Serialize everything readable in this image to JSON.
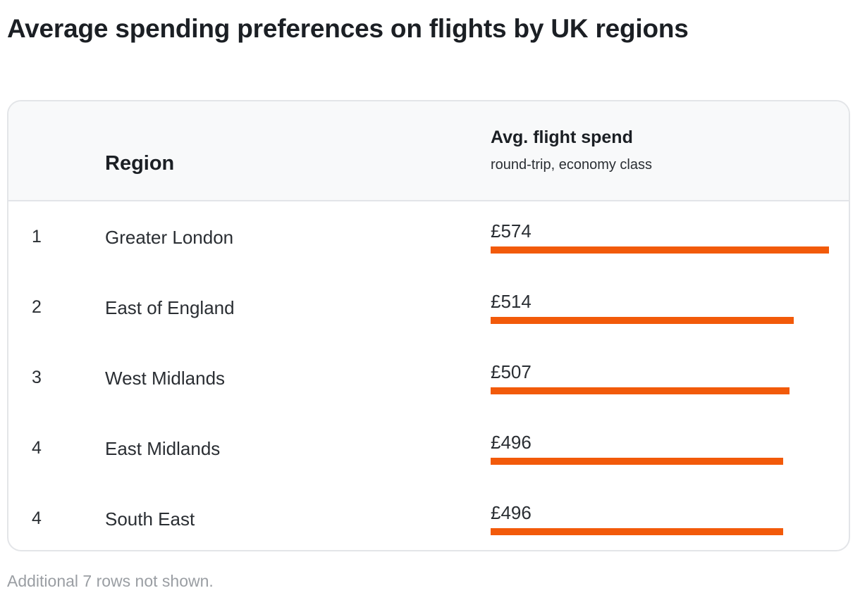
{
  "title": "Average spending preferences on flights by UK regions",
  "table": {
    "header": {
      "region": "Region",
      "spend_title": "Avg. flight spend",
      "spend_subtitle": "round-trip, economy class"
    },
    "rows": [
      {
        "rank": "1",
        "region": "Greater London",
        "value_label": "£574"
      },
      {
        "rank": "2",
        "region": "East of England",
        "value_label": "£514"
      },
      {
        "rank": "3",
        "region": "West Midlands",
        "value_label": "£507"
      },
      {
        "rank": "4",
        "region": "East Midlands",
        "value_label": "£496"
      },
      {
        "rank": "4",
        "region": "South East",
        "value_label": "£496"
      }
    ]
  },
  "footnote": "Additional 7 rows not shown.",
  "colors": {
    "bar": "#f25a0a",
    "border": "#e3e5e8",
    "header_bg": "#f8f9fa"
  },
  "chart_data": {
    "type": "bar",
    "categories": [
      "Greater London",
      "East of England",
      "West Midlands",
      "East Midlands",
      "South East"
    ],
    "values": [
      574,
      514,
      507,
      496,
      496
    ]
  }
}
